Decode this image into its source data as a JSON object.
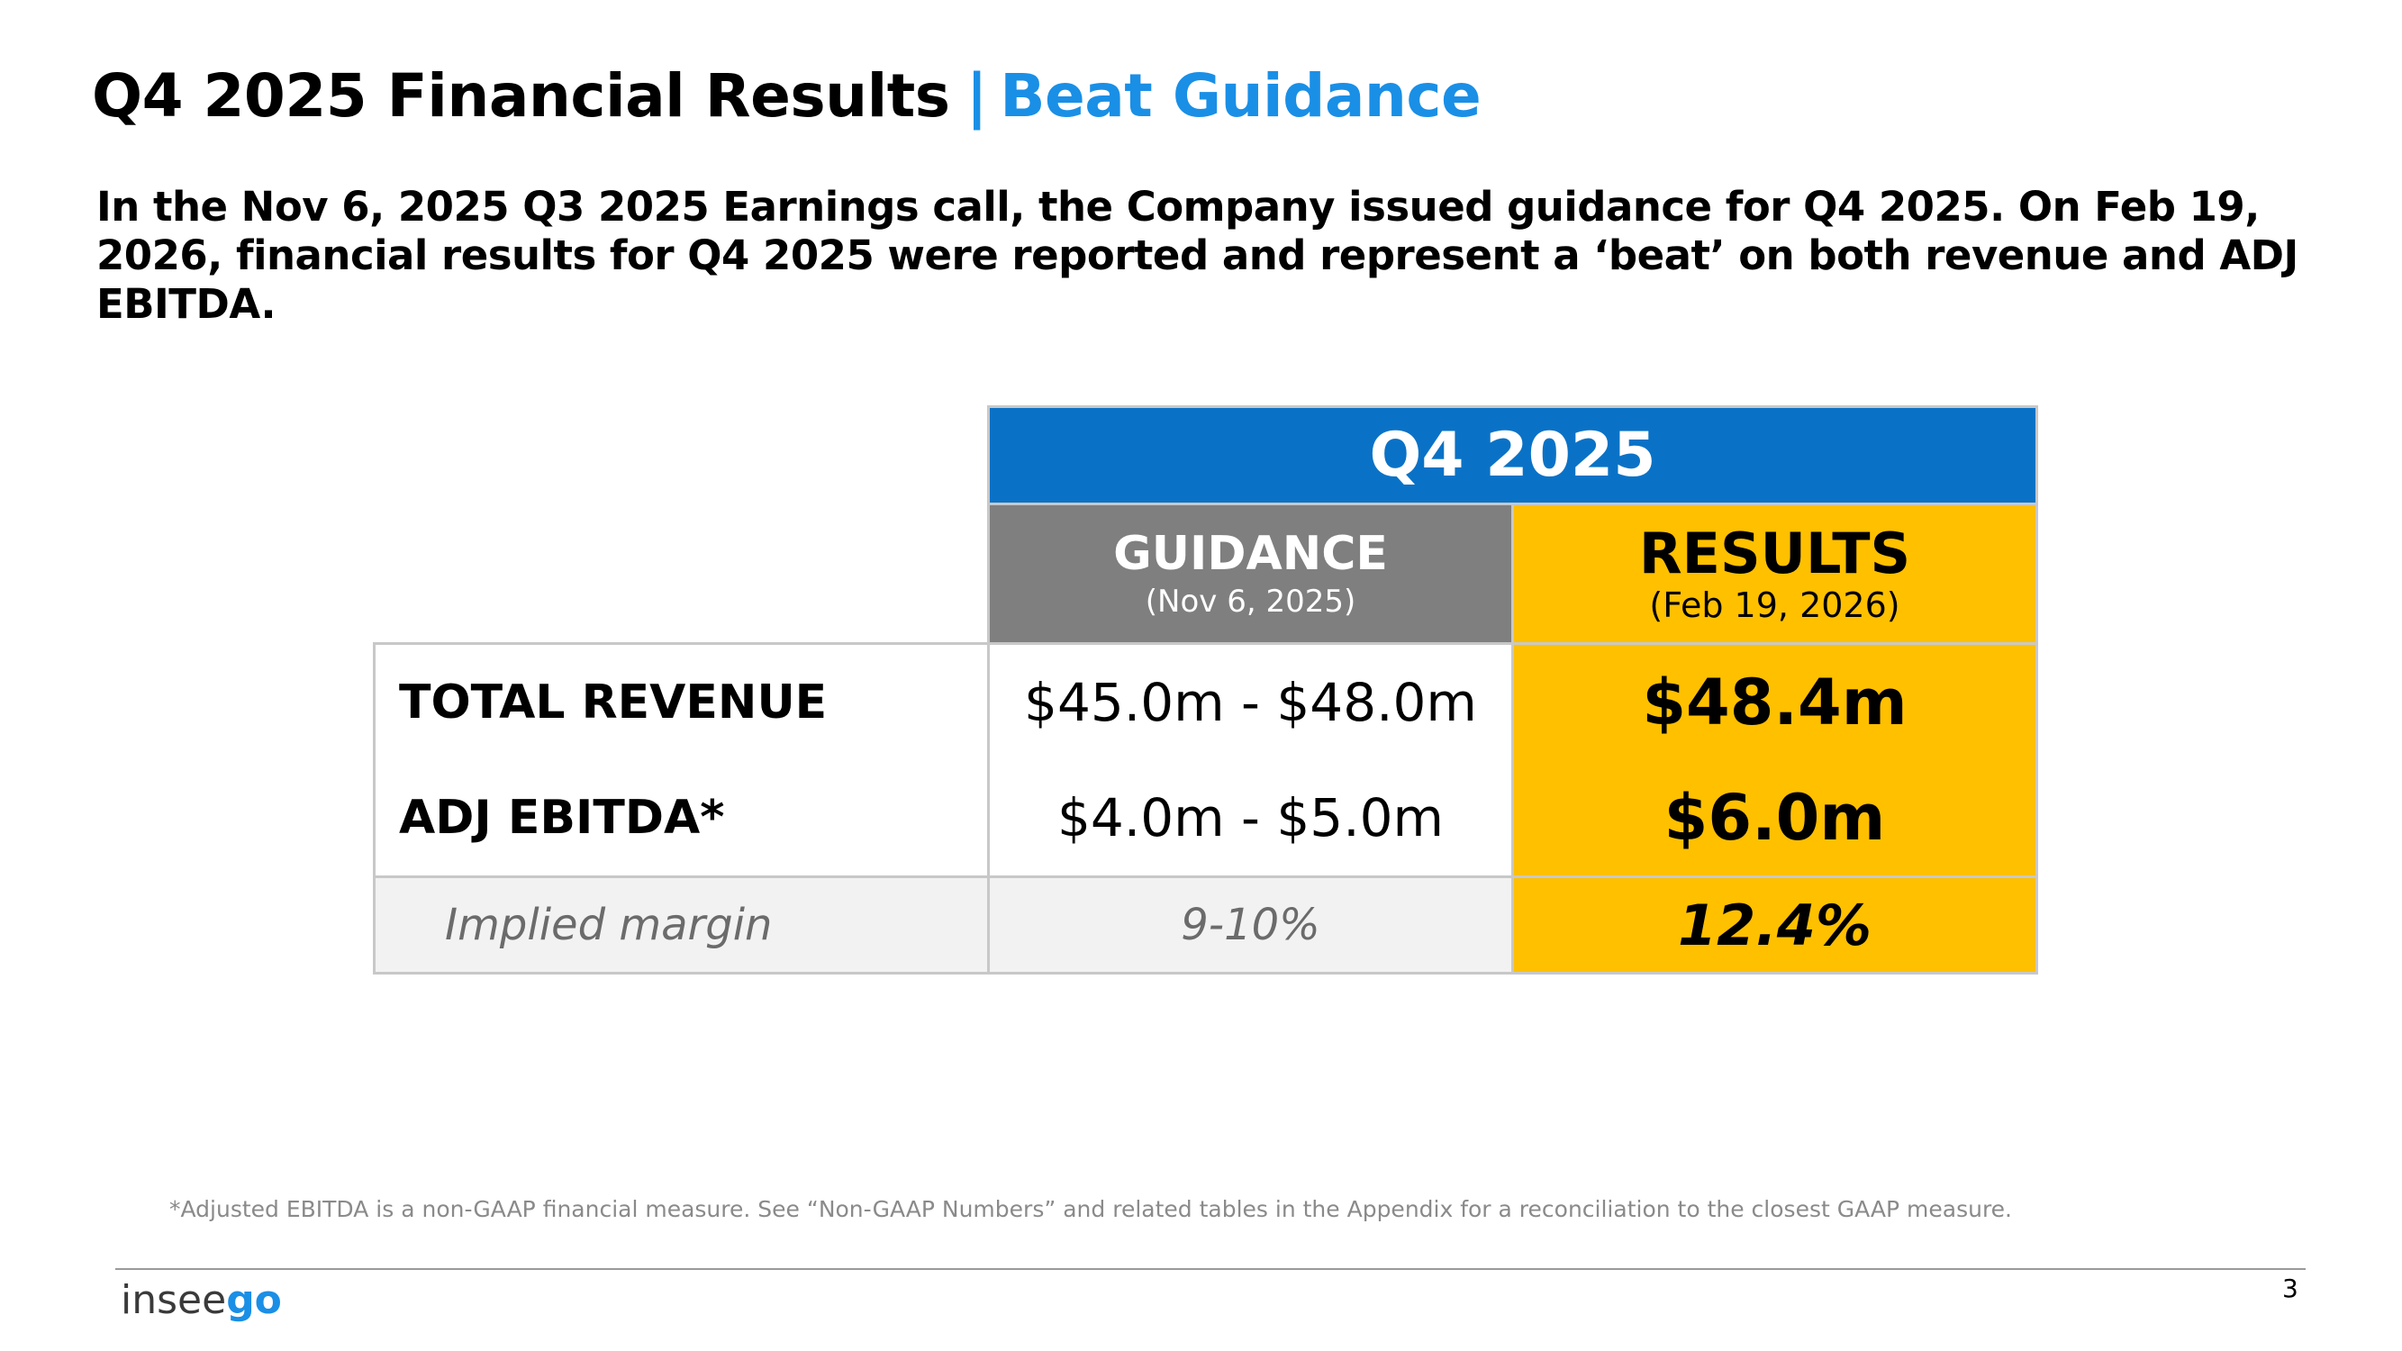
{
  "header": {
    "title": "Q4 2025 Financial Results",
    "separator": "|",
    "accent": "Beat Guidance",
    "subtitle": "In the Nov 6, 2025 Q3 2025 Earnings call, the Company issued guidance for Q4 2025. On Feb 19, 2026, financial results for Q4 2025 were reported and represent a ‘beat’ on both revenue and ADJ EBITDA."
  },
  "table": {
    "period": "Q4 2025",
    "guidance_label": "GUIDANCE",
    "guidance_date": "(Nov 6, 2025)",
    "results_label": "RESULTS",
    "results_date": "(Feb 19, 2026)",
    "rows": [
      {
        "label": "TOTAL REVENUE",
        "guidance": "$45.0m - $48.0m",
        "result": "$48.4m"
      },
      {
        "label": "ADJ EBITDA*",
        "guidance": "$4.0m - $5.0m",
        "result": "$6.0m"
      }
    ],
    "margin": {
      "label": "Implied margin",
      "guidance": "9-10%",
      "result": "12.4%"
    }
  },
  "footer": {
    "footnote": "*Adjusted EBITDA is a non-GAAP financial measure. See “Non-GAAP Numbers” and related tables in the Appendix for a reconciliation to the closest GAAP measure.",
    "logo_prefix": "insee",
    "logo_suffix": "go",
    "page_number": "3"
  },
  "colors": {
    "accent_blue": "#1a8fe6",
    "header_blue": "#0a72c6",
    "guidance_gray": "#7f7f7f",
    "results_gold": "#ffc000"
  }
}
